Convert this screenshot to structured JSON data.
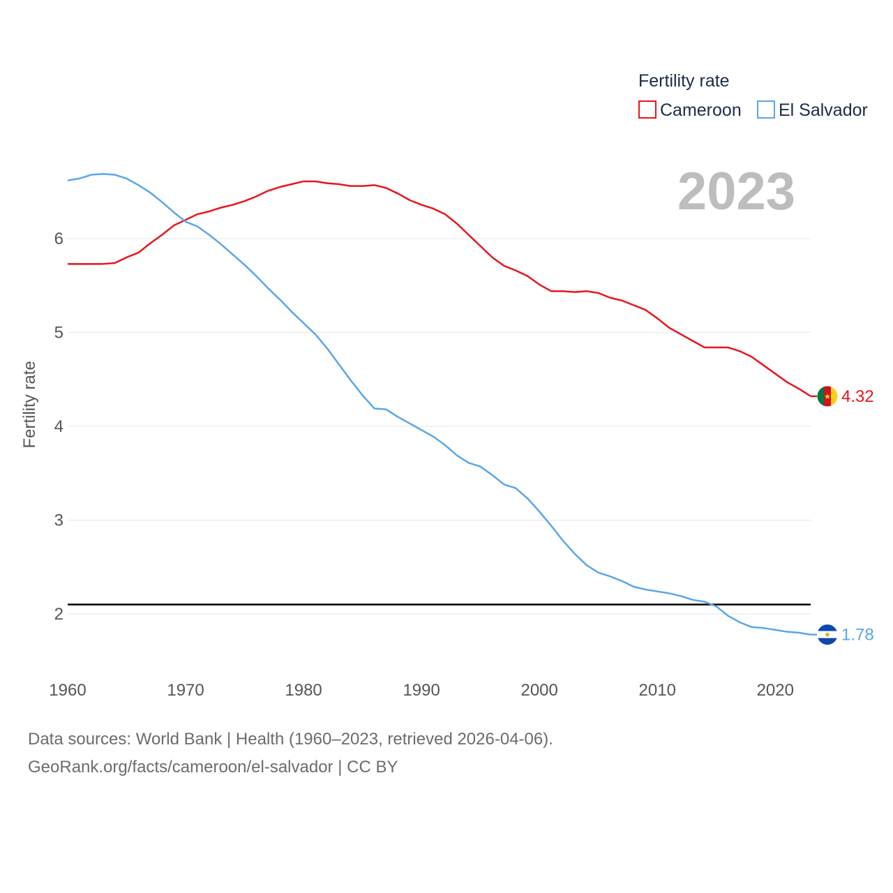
{
  "year_display": "2023",
  "legend": {
    "title": "Fertility rate",
    "items": [
      {
        "name": "Cameroon",
        "color": "#e8141b"
      },
      {
        "name": "El Salvador",
        "color": "#5aa6e6"
      }
    ]
  },
  "footer": {
    "line1": "Data sources: World Bank | Health (1960–2023, retrieved 2026-04-06).",
    "line2": "GeoRank.org/facts/cameroon/el-salvador | CC BY"
  },
  "chart_data": {
    "type": "line",
    "title": "Fertility rate",
    "xlabel": "",
    "ylabel": "Fertility rate",
    "xlim": [
      1960,
      2023
    ],
    "ylim": [
      1.5,
      6.9
    ],
    "x_ticks": [
      "1960",
      "1970",
      "1980",
      "1990",
      "2000",
      "2010",
      "2020"
    ],
    "y_ticks": [
      "2",
      "3",
      "4",
      "5",
      "6"
    ],
    "reference_line": 2.1,
    "grid": true,
    "legend_position": "top-right",
    "x": [
      1960,
      1961,
      1962,
      1963,
      1964,
      1965,
      1966,
      1967,
      1968,
      1969,
      1970,
      1971,
      1972,
      1973,
      1974,
      1975,
      1976,
      1977,
      1978,
      1979,
      1980,
      1981,
      1982,
      1983,
      1984,
      1985,
      1986,
      1987,
      1988,
      1989,
      1990,
      1991,
      1992,
      1993,
      1994,
      1995,
      1996,
      1997,
      1998,
      1999,
      2000,
      2001,
      2002,
      2003,
      2004,
      2005,
      2006,
      2007,
      2008,
      2009,
      2010,
      2011,
      2012,
      2013,
      2014,
      2015,
      2016,
      2017,
      2018,
      2019,
      2020,
      2021,
      2022,
      2023
    ],
    "series": [
      {
        "name": "Cameroon",
        "color": "#e8141b",
        "end_label": "4.32",
        "values": [
          5.73,
          5.73,
          5.73,
          5.73,
          5.74,
          5.8,
          5.85,
          5.95,
          6.04,
          6.14,
          6.2,
          6.26,
          6.29,
          6.33,
          6.36,
          6.4,
          6.45,
          6.51,
          6.55,
          6.58,
          6.61,
          6.61,
          6.59,
          6.58,
          6.56,
          6.56,
          6.57,
          6.54,
          6.48,
          6.41,
          6.36,
          6.32,
          6.26,
          6.16,
          6.04,
          5.92,
          5.8,
          5.71,
          5.66,
          5.6,
          5.51,
          5.44,
          5.44,
          5.43,
          5.44,
          5.42,
          5.37,
          5.34,
          5.29,
          5.24,
          5.15,
          5.05,
          4.98,
          4.91,
          4.84,
          4.84,
          4.84,
          4.8,
          4.74,
          4.65,
          4.56,
          4.47,
          4.4,
          4.32
        ]
      },
      {
        "name": "El Salvador",
        "color": "#5aa6e6",
        "end_label": "1.78",
        "values": [
          6.62,
          6.64,
          6.68,
          6.69,
          6.68,
          6.64,
          6.57,
          6.49,
          6.39,
          6.28,
          6.18,
          6.13,
          6.04,
          5.94,
          5.83,
          5.72,
          5.6,
          5.47,
          5.35,
          5.22,
          5.1,
          4.98,
          4.83,
          4.66,
          4.49,
          4.33,
          4.19,
          4.18,
          4.1,
          4.03,
          3.96,
          3.89,
          3.8,
          3.69,
          3.61,
          3.57,
          3.48,
          3.38,
          3.34,
          3.23,
          3.09,
          2.94,
          2.78,
          2.64,
          2.52,
          2.44,
          2.4,
          2.35,
          2.29,
          2.26,
          2.24,
          2.22,
          2.19,
          2.15,
          2.13,
          2.08,
          1.98,
          1.91,
          1.86,
          1.85,
          1.83,
          1.81,
          1.8,
          1.78
        ]
      }
    ]
  }
}
